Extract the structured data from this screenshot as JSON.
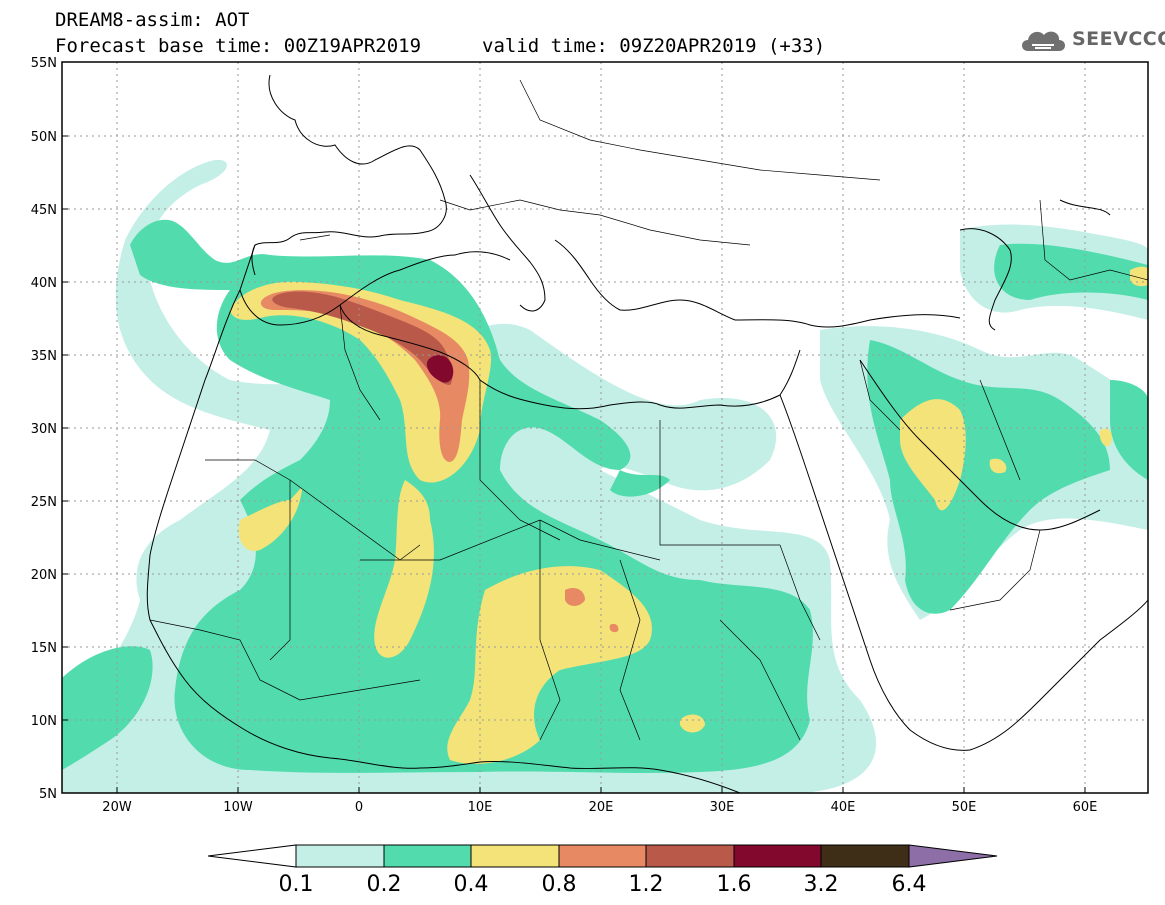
{
  "header": {
    "line1": "DREAM8-assim: AOT",
    "line2": "Forecast base time: 00Z19APR2019",
    "valid": "valid time: 09Z20APR2019 (+33)"
  },
  "logo": {
    "text": "SEEVCCC",
    "icon": "cloud-icon"
  },
  "map": {
    "lat_labels": [
      "55N",
      "50N",
      "45N",
      "40N",
      "35N",
      "30N",
      "25N",
      "20N",
      "15N",
      "10N",
      "5N"
    ],
    "lon_labels": [
      "20W",
      "10W",
      "0",
      "10E",
      "20E",
      "30E",
      "40E",
      "50E",
      "60E"
    ]
  },
  "colorbar": {
    "labels": [
      "0.1",
      "0.2",
      "0.4",
      "0.8",
      "1.2",
      "1.6",
      "3.2",
      "6.4"
    ],
    "colors": [
      "#ffffff",
      "#c3efe6",
      "#52dcae",
      "#f3e379",
      "#e78a64",
      "#b9594a",
      "#83082e",
      "#3e2d17",
      "#8d6ea7"
    ]
  }
}
